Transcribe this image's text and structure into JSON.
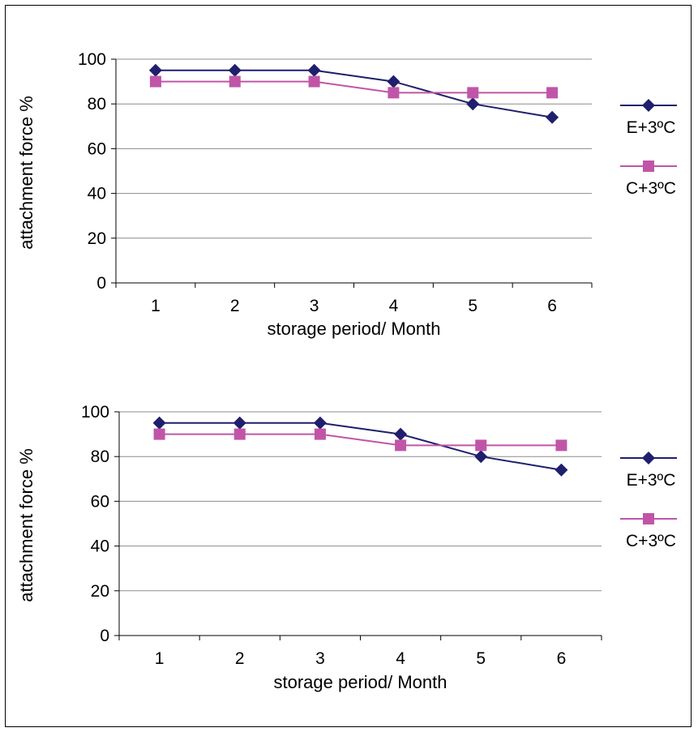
{
  "chart_data": [
    {
      "type": "line",
      "categories": [
        "1",
        "2",
        "3",
        "4",
        "5",
        "6"
      ],
      "xlabel": "storage period/ Month",
      "ylabel": "attachment force %",
      "ylim": [
        0,
        100
      ],
      "yticks": [
        0,
        20,
        40,
        60,
        80,
        100
      ],
      "grid": true,
      "legend_position": "right",
      "series": [
        {
          "name": "E+3ºC",
          "values": [
            95,
            95,
            95,
            90,
            80,
            74
          ],
          "color": "#1f1f6e",
          "marker": "diamond"
        },
        {
          "name": "C+3ºC",
          "values": [
            90,
            90,
            90,
            85,
            85,
            85
          ],
          "color": "#c055a8",
          "marker": "square"
        }
      ]
    },
    {
      "type": "line",
      "categories": [
        "1",
        "2",
        "3",
        "4",
        "5",
        "6"
      ],
      "xlabel": "storage period/ Month",
      "ylabel": "attachment force %",
      "ylim": [
        0,
        100
      ],
      "yticks": [
        0,
        20,
        40,
        60,
        80,
        100
      ],
      "grid": true,
      "legend_position": "right",
      "series": [
        {
          "name": "E+3ºC",
          "values": [
            95,
            95,
            95,
            90,
            80,
            74
          ],
          "color": "#1f1f6e",
          "marker": "diamond"
        },
        {
          "name": "C+3ºC",
          "values": [
            90,
            90,
            90,
            85,
            85,
            85
          ],
          "color": "#c055a8",
          "marker": "square"
        }
      ]
    }
  ]
}
